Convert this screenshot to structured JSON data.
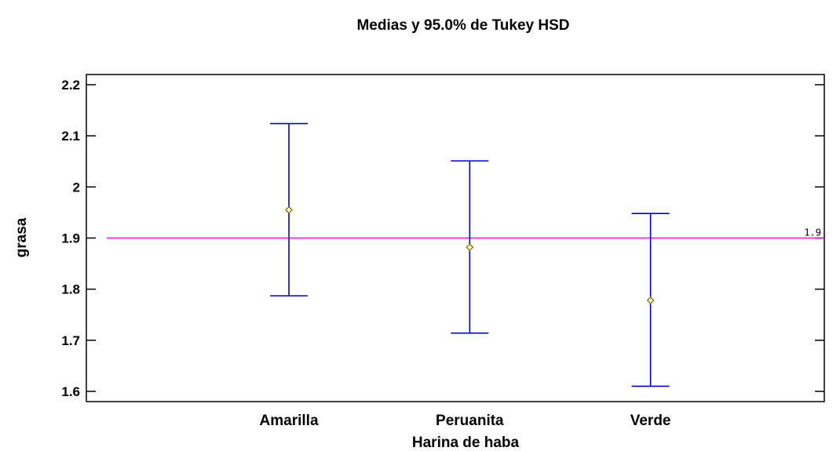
{
  "chart_data": {
    "type": "errorbar",
    "title": "Medias y 95.0% de Tukey HSD",
    "xlabel": "Harina de haba",
    "ylabel": "grasa",
    "ylim": [
      1.58,
      2.22
    ],
    "yticks": [
      1.6,
      1.7,
      1.8,
      1.9,
      2.0,
      2.1,
      2.2
    ],
    "ytick_labels": [
      "1.6",
      "1.7",
      "1.8",
      "1.9",
      "2",
      "2.1",
      "2.2"
    ],
    "categories": [
      "Amarilla",
      "Peruanita",
      "Verde"
    ],
    "means": [
      1.955,
      1.882,
      1.778
    ],
    "lower": [
      1.787,
      1.714,
      1.61
    ],
    "upper": [
      2.124,
      2.051,
      1.948
    ],
    "reference_line": {
      "value": 1.9,
      "label": "1.9",
      "color": "#ff00ff"
    },
    "colors": {
      "errorbar": "#0000cc",
      "marker": "#8a7a00",
      "axis": "#000000"
    },
    "grid": false
  }
}
